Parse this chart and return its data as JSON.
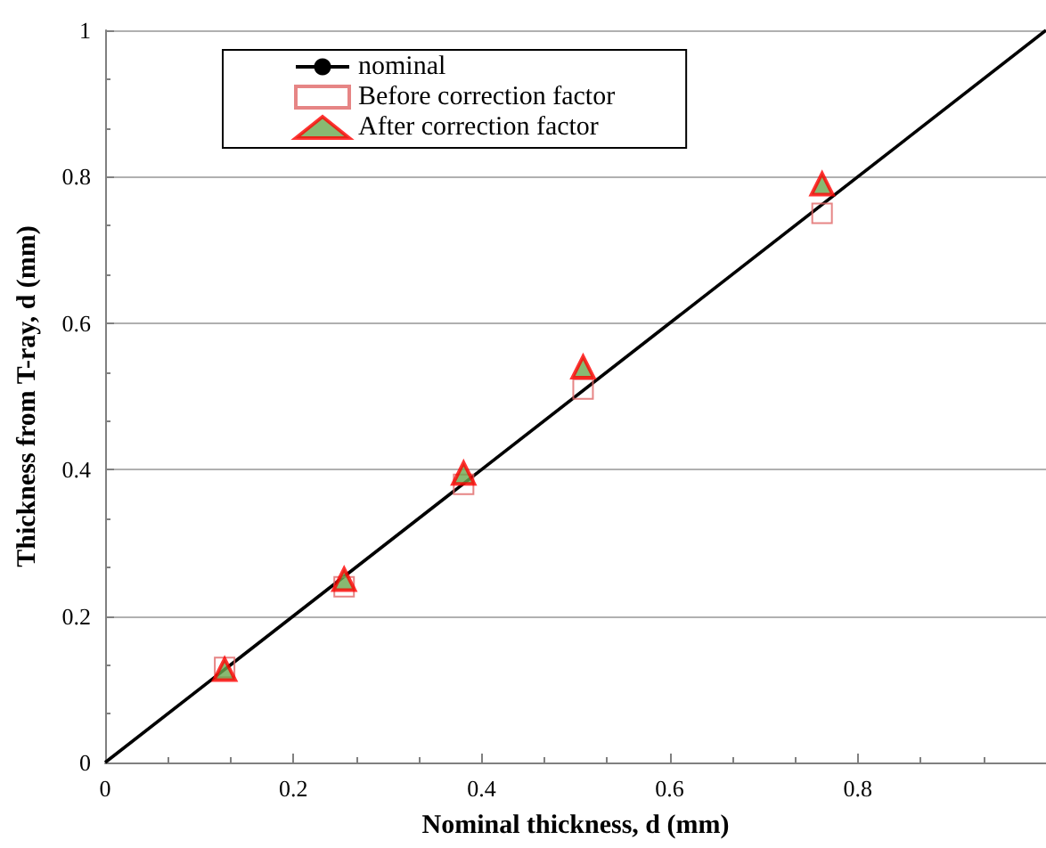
{
  "chart_data": {
    "type": "scatter",
    "xlabel": "Nominal thickness, d (mm)",
    "ylabel": "Thickness from T-ray, d (mm)",
    "xlim": [
      0,
      1
    ],
    "xticks": [
      0,
      0.2,
      0.4,
      0.6,
      0.8
    ],
    "ylim": [
      0,
      1
    ],
    "yticks": [
      0,
      0.2,
      0.4,
      0.6,
      0.8,
      1
    ],
    "grid": "y",
    "legend": "top left",
    "series": [
      {
        "name": "nominal",
        "type": "line",
        "color": "#000000",
        "marker": "none",
        "line_style": "solid",
        "x": [
          0,
          1
        ],
        "values": [
          0,
          1
        ]
      },
      {
        "name": "Before correction factor",
        "color": "#e06666",
        "marker": "square",
        "x": [
          0.127,
          0.254,
          0.381,
          0.508,
          0.762
        ],
        "values": [
          0.13,
          0.24,
          0.38,
          0.51,
          0.75
        ]
      },
      {
        "name": "After correction factor",
        "color": "#ff0000",
        "marker": "triangle",
        "x": [
          0.127,
          0.254,
          0.381,
          0.508,
          0.762
        ],
        "values": [
          0.127,
          0.25,
          0.395,
          0.54,
          0.79
        ]
      }
    ]
  }
}
